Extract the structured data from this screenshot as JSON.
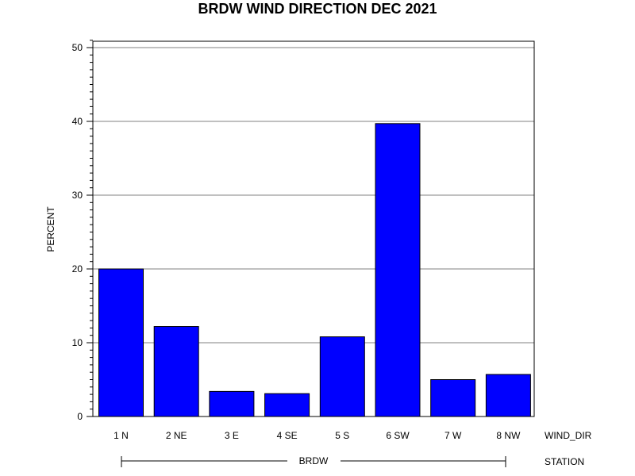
{
  "chart_data": {
    "type": "bar",
    "title": "BRDW WIND DIRECTION DEC 2021",
    "ylabel": "PERCENT",
    "xlabel": "WIND_DIR",
    "group_label": "STATION",
    "group_name": "BRDW",
    "categories": [
      "1 N",
      "2 NE",
      "3 E",
      "4 SE",
      "5 S",
      "6 SW",
      "7 W",
      "8 NW"
    ],
    "values": [
      20.0,
      12.2,
      3.4,
      3.1,
      10.8,
      39.7,
      5.0,
      5.7
    ],
    "ylim": [
      0,
      51
    ],
    "yticks": [
      0,
      10,
      20,
      30,
      40,
      50
    ],
    "grid": true,
    "bar_color": "#0000ff"
  }
}
